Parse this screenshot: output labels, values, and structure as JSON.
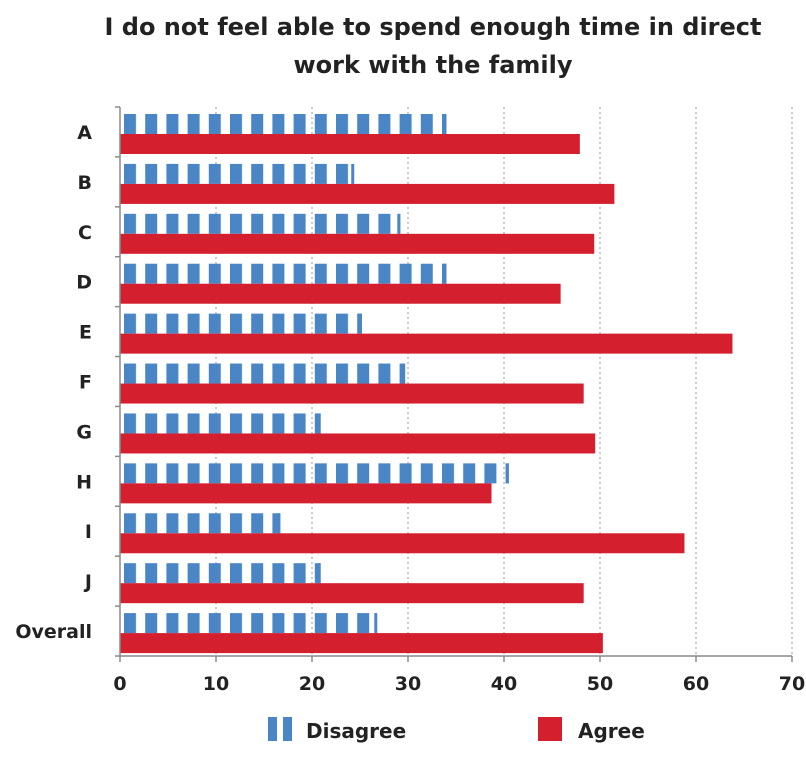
{
  "chart_data": {
    "type": "bar",
    "orientation": "horizontal",
    "title": "I do not feel able to spend enough time in direct work with the family",
    "title_lines": [
      "I do not feel able to spend enough time in direct",
      "work with the family"
    ],
    "categories": [
      "A",
      "B",
      "C",
      "D",
      "E",
      "F",
      "G",
      "H",
      "I",
      "J",
      "Overall"
    ],
    "series": [
      {
        "name": "Disagree",
        "color": "#4a86c5",
        "pattern": "dashed",
        "values": [
          34,
          24.4,
          29.2,
          34,
          25.2,
          29.7,
          20.9,
          40.5,
          16.7,
          20.9,
          26.8
        ]
      },
      {
        "name": "Agree",
        "color": "#d4202e",
        "pattern": "solid",
        "values": [
          47.9,
          51.5,
          49.4,
          45.9,
          63.8,
          48.3,
          49.5,
          38.7,
          58.8,
          48.3,
          50.3
        ]
      }
    ],
    "xlim": [
      0,
      70
    ],
    "xticks": [
      0,
      10,
      20,
      30,
      40,
      50,
      60,
      70
    ],
    "xlabel": "",
    "ylabel": "",
    "grid": "vertical dotted",
    "legend_position": "bottom"
  }
}
